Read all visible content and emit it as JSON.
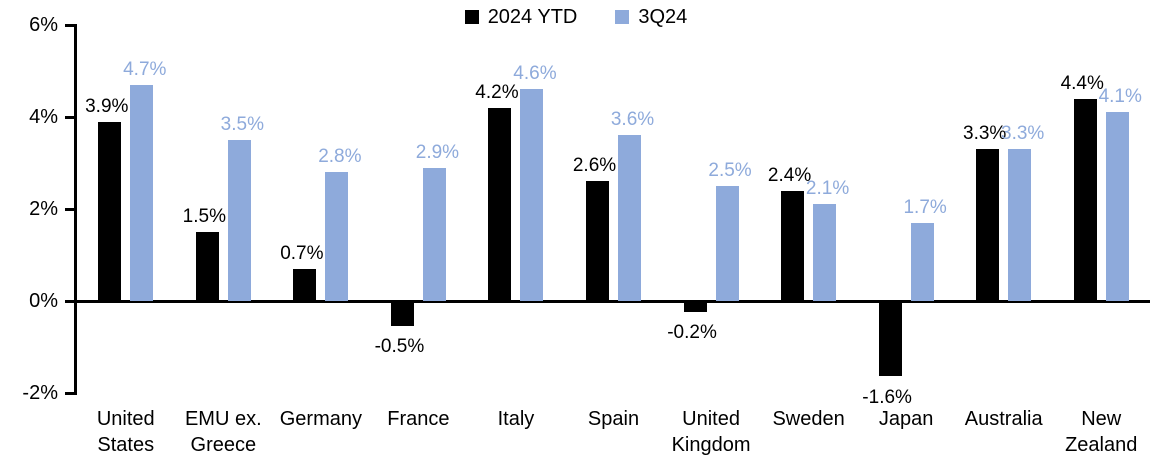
{
  "chart_data": {
    "type": "bar",
    "title": "",
    "legend_position": "top-center",
    "grid": false,
    "background": "#FFFFFF",
    "categories": [
      "United States",
      "EMU ex. Greece",
      "Germany",
      "France",
      "Italy",
      "Spain",
      "United Kingdom",
      "Sweden",
      "Japan",
      "Australia",
      "New Zealand"
    ],
    "category_labels": [
      "United\nStates",
      "EMU ex.\nGreece",
      "Germany",
      "France",
      "Italy",
      "Spain",
      "United\nKingdom",
      "Sweden",
      "Japan",
      "Australia",
      "New\nZealand"
    ],
    "series": [
      {
        "name": "2024 YTD",
        "color": "#000000",
        "values": [
          3.9,
          1.5,
          0.7,
          -0.5,
          4.2,
          2.6,
          -0.2,
          2.4,
          -1.6,
          3.3,
          4.4
        ],
        "labels": [
          "3.9%",
          "1.5%",
          "0.7%",
          "-0.5%",
          "4.2%",
          "2.6%",
          "-0.2%",
          "2.4%",
          "-1.6%",
          "3.3%",
          "4.4%"
        ]
      },
      {
        "name": "3Q24",
        "color": "#8EAADB",
        "values": [
          4.7,
          3.5,
          2.8,
          2.9,
          4.6,
          3.6,
          2.5,
          2.1,
          1.7,
          3.3,
          4.1
        ],
        "labels": [
          "4.7%",
          "3.5%",
          "2.8%",
          "2.9%",
          "4.6%",
          "3.6%",
          "2.5%",
          "2.1%",
          "1.7%",
          "3.3%",
          "4.1%"
        ]
      }
    ],
    "y_axis": {
      "min": -2,
      "max": 6,
      "tick_step": 2,
      "tick_values": [
        6,
        4,
        2,
        0,
        -2
      ],
      "tick_labels": [
        "6%",
        "4%",
        "2%",
        "0%",
        "-2%"
      ]
    }
  }
}
